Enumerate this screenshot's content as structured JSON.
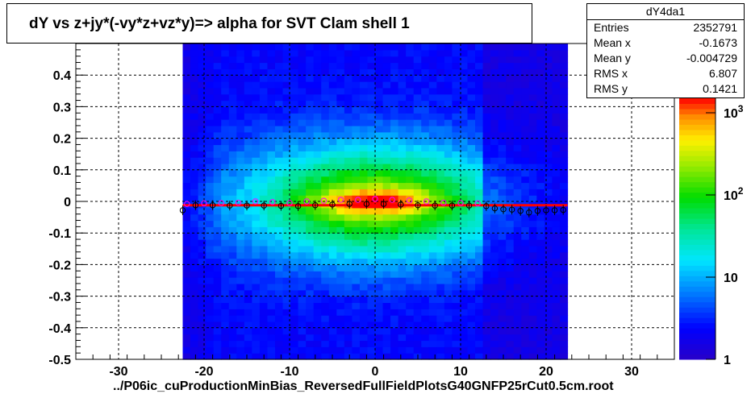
{
  "title": "dY vs  z+jy*(-vy*z+vz*y)=> alpha for SVT Clam shell 1",
  "footer": "../P06ic_cuProductionMinBias_ReversedFullFieldPlotsG40GNFP25rCut0.5cm.root",
  "stats": {
    "name": "dY4da1",
    "rows": [
      {
        "label": "Entries",
        "value": "2352791"
      },
      {
        "label": "Mean x",
        "value": "-0.1673"
      },
      {
        "label": "Mean y",
        "value": "-0.004729"
      },
      {
        "label": "RMS x",
        "value": "6.807"
      },
      {
        "label": "RMS y",
        "value": "0.1421"
      }
    ]
  },
  "chart_data": {
    "type": "heatmap",
    "title": "dY vs  z+jy*(-vy*z+vz*y)=> alpha for SVT Clam shell 1",
    "xlabel": "",
    "ylabel": "",
    "xlim": [
      -35,
      35
    ],
    "ylim": [
      -0.5,
      0.5
    ],
    "x_ticks": [
      "-30",
      "-20",
      "-10",
      "0",
      "10",
      "20",
      "30"
    ],
    "x_tick_values": [
      -30,
      -20,
      -10,
      0,
      10,
      20,
      30
    ],
    "y_ticks": [
      "-0.5",
      "-0.4",
      "-0.3",
      "-0.2",
      "-0.1",
      "0",
      "0.1",
      "0.2",
      "0.3",
      "0.4"
    ],
    "y_tick_values": [
      -0.5,
      -0.4,
      -0.3,
      -0.2,
      -0.1,
      0,
      0.1,
      0.2,
      0.3,
      0.4
    ],
    "z_scale": "log",
    "z_range": [
      1,
      1500
    ],
    "z_ticks": [
      {
        "label": "1",
        "value": 1
      },
      {
        "label": "10",
        "value": 10
      },
      {
        "label": "10",
        "exp": "2",
        "value": 100
      },
      {
        "label": "10",
        "exp": "3",
        "value": 1000
      }
    ],
    "grid": true,
    "data_x_range": [
      -22.5,
      22.5
    ],
    "profile_black": {
      "x": [
        -22.5,
        -21,
        -19,
        -17,
        -15,
        -13,
        -11,
        -9,
        -7,
        -5,
        -3,
        -1,
        1,
        3,
        5,
        7,
        9,
        11,
        13,
        14,
        15,
        16,
        17,
        18,
        19,
        20,
        21,
        22
      ],
      "y": [
        -0.028,
        -0.012,
        -0.012,
        -0.013,
        -0.013,
        -0.013,
        -0.014,
        -0.015,
        -0.012,
        -0.01,
        -0.008,
        -0.008,
        -0.008,
        -0.01,
        -0.012,
        -0.013,
        -0.013,
        -0.013,
        -0.015,
        -0.022,
        -0.025,
        -0.026,
        -0.03,
        -0.035,
        -0.03,
        -0.028,
        -0.028,
        -0.027
      ]
    },
    "profile_magenta": {
      "x": [
        -22,
        -20,
        -18,
        -16,
        -14,
        -12,
        -10,
        -8,
        -6,
        -4,
        -2,
        0,
        2,
        4,
        6,
        8,
        10,
        12
      ],
      "y": [
        -0.008,
        -0.006,
        -0.005,
        -0.004,
        0.0,
        -0.002,
        -0.005,
        0.0,
        0.002,
        0.005,
        0.005,
        0.008,
        0.005,
        0.003,
        0.0,
        -0.004,
        -0.005,
        -0.006
      ]
    },
    "fit_line": {
      "x": [
        -22.5,
        22.5
      ],
      "y": [
        -0.012,
        -0.012
      ]
    }
  }
}
